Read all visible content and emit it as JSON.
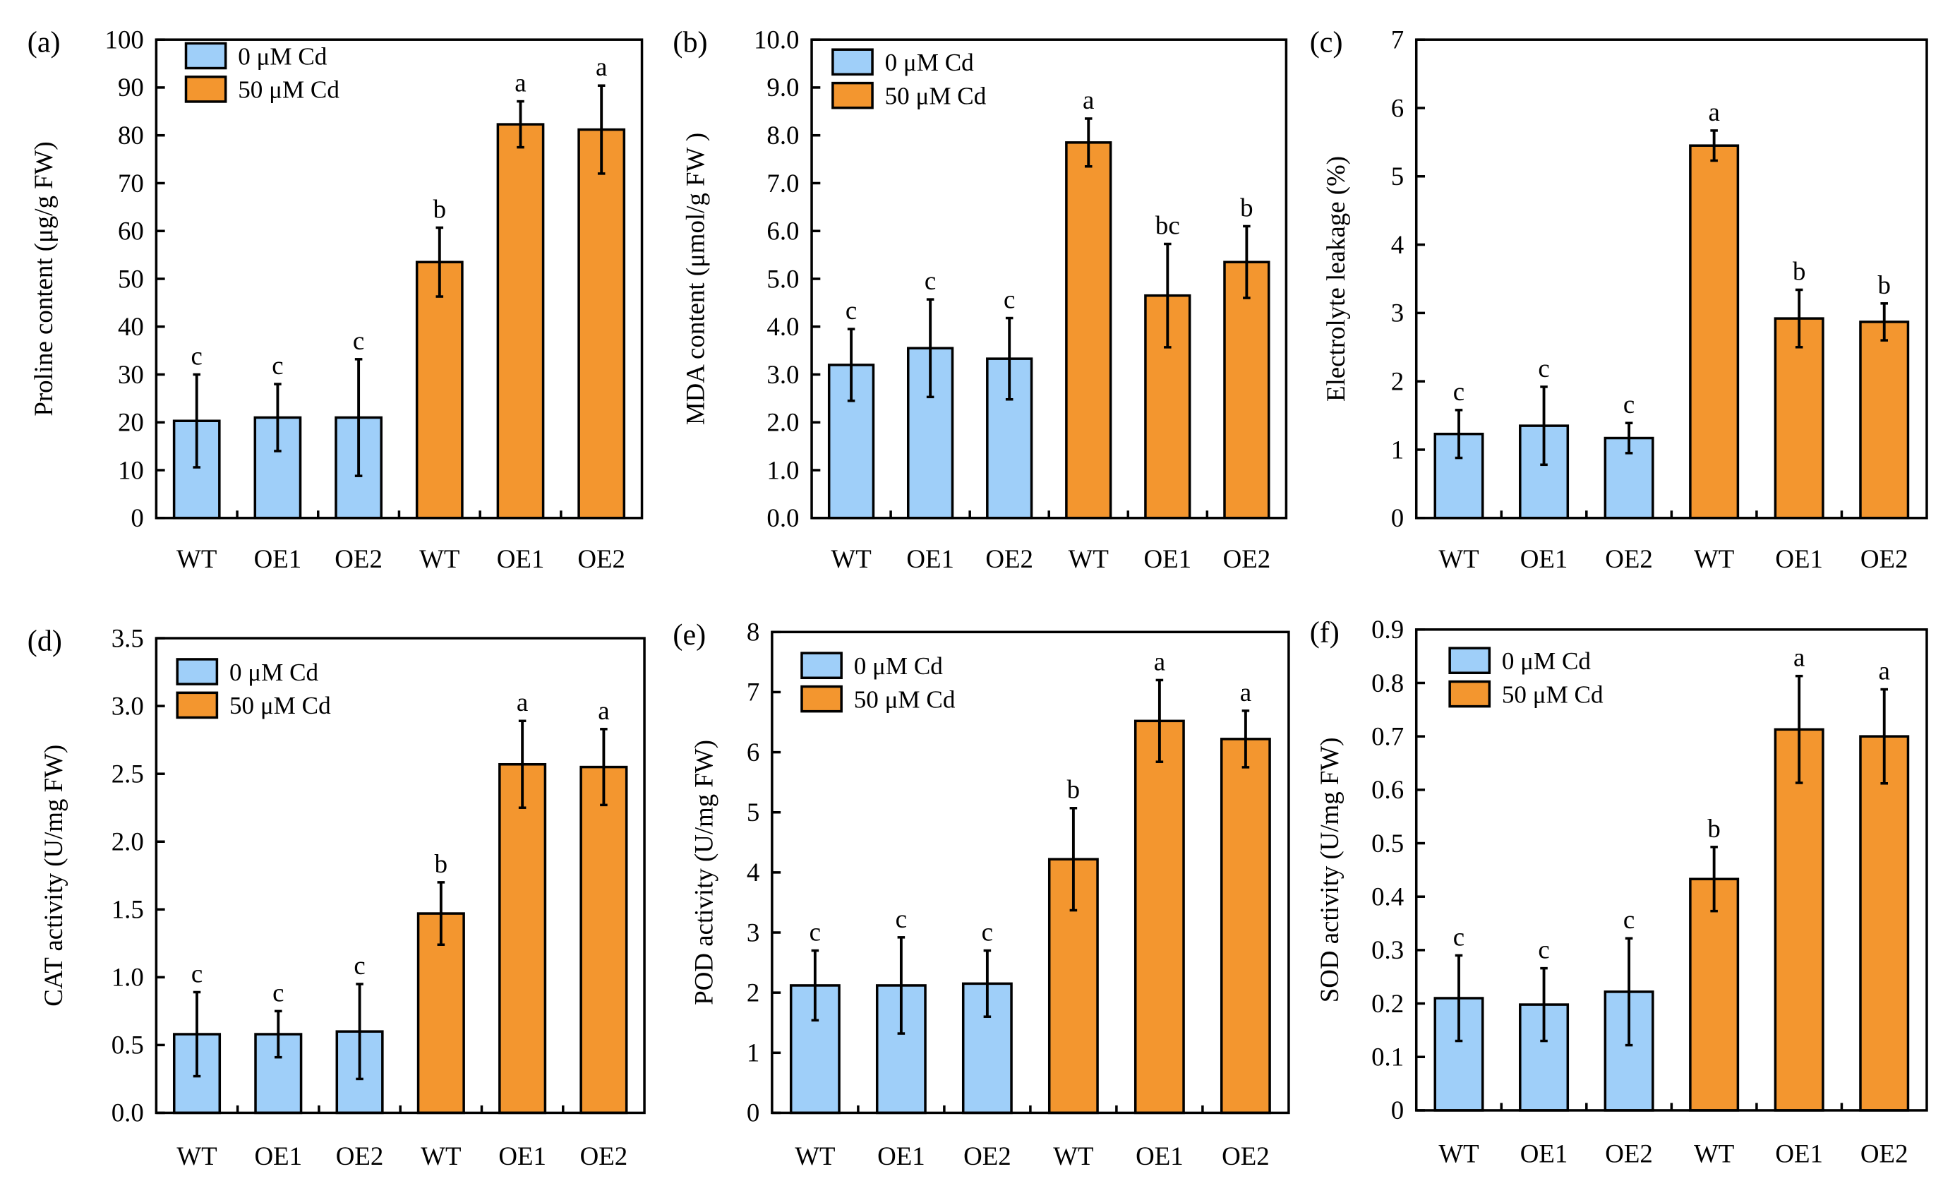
{
  "colors": {
    "control": "#9fcff9",
    "treated": "#f3962f",
    "axis": "#000000"
  },
  "legend": [
    "0   μM Cd",
    "50 μM Cd"
  ],
  "chart_data": [
    {
      "panel": "(a)",
      "type": "bar",
      "ylabel": "Proline content (μg/g FW)",
      "ylim": [
        0,
        100
      ],
      "yticks": [
        "0",
        "10",
        "20",
        "30",
        "40",
        "50",
        "60",
        "70",
        "80",
        "90",
        "100"
      ],
      "categories": [
        "WT",
        "OE1",
        "OE2",
        "WT",
        "OE1",
        "OE2"
      ],
      "groups": [
        "0 μM Cd",
        "0 μM Cd",
        "0 μM Cd",
        "50 μM Cd",
        "50 μM Cd",
        "50 μM Cd"
      ],
      "values": [
        20.3,
        21.0,
        21.0,
        53.5,
        82.3,
        81.2
      ],
      "errors": [
        9.7,
        7.0,
        12.2,
        7.2,
        4.8,
        9.2
      ],
      "letters": [
        "c",
        "c",
        "c",
        "b",
        "a",
        "a"
      ],
      "legend": true
    },
    {
      "panel": "(b)",
      "type": "bar",
      "ylabel": "MDA content (μmol/g FW )",
      "ylim": [
        0,
        10
      ],
      "yticks": [
        "0.0",
        "1.0",
        "2.0",
        "3.0",
        "4.0",
        "5.0",
        "6.0",
        "7.0",
        "8.0",
        "9.0",
        "10.0"
      ],
      "categories": [
        "WT",
        "OE1",
        "OE2",
        "WT",
        "OE1",
        "OE2"
      ],
      "groups": [
        "0 μM Cd",
        "0 μM Cd",
        "0 μM Cd",
        "50 μM Cd",
        "50 μM Cd",
        "50 μM Cd"
      ],
      "values": [
        3.2,
        3.55,
        3.33,
        7.85,
        4.65,
        5.35
      ],
      "errors": [
        0.75,
        1.02,
        0.85,
        0.5,
        1.08,
        0.75
      ],
      "letters": [
        "c",
        "c",
        "c",
        "a",
        "bc",
        "b"
      ],
      "legend": true
    },
    {
      "panel": "(c)",
      "type": "bar",
      "ylabel": "Electrolyte leakage (%)",
      "ylim": [
        0,
        7
      ],
      "yticks": [
        "0",
        "1",
        "2",
        "3",
        "4",
        "5",
        "6",
        "7"
      ],
      "categories": [
        "WT",
        "OE1",
        "OE2",
        "WT",
        "OE1",
        "OE2"
      ],
      "groups": [
        "0 μM Cd",
        "0 μM Cd",
        "0 μM Cd",
        "50 μM Cd",
        "50 μM Cd",
        "50 μM Cd"
      ],
      "values": [
        1.23,
        1.35,
        1.17,
        5.45,
        2.92,
        2.87
      ],
      "errors": [
        0.35,
        0.57,
        0.22,
        0.22,
        0.42,
        0.27
      ],
      "letters": [
        "c",
        "c",
        "c",
        "a",
        "b",
        "b"
      ],
      "legend": false
    },
    {
      "panel": "(d)",
      "type": "bar",
      "ylabel": "CAT activity (U/mg FW)",
      "ylim": [
        0,
        3.5
      ],
      "yticks": [
        "0.0",
        "0.5",
        "1.0",
        "1.5",
        "2.0",
        "2.5",
        "3.0",
        "3.5"
      ],
      "categories": [
        "WT",
        "OE1",
        "OE2",
        "WT",
        "OE1",
        "OE2"
      ],
      "groups": [
        "0 μM Cd",
        "0 μM Cd",
        "0 μM Cd",
        "50 μM Cd",
        "50 μM Cd",
        "50 μM Cd"
      ],
      "values": [
        0.58,
        0.58,
        0.6,
        1.47,
        2.57,
        2.55
      ],
      "errors": [
        0.31,
        0.17,
        0.35,
        0.23,
        0.32,
        0.28
      ],
      "letters": [
        "c",
        "c",
        "c",
        "b",
        "a",
        "a"
      ],
      "legend": true
    },
    {
      "panel": "(e)",
      "type": "bar",
      "ylabel": "POD activity (U/mg FW)",
      "ylim": [
        0,
        8
      ],
      "yticks": [
        "0",
        "1",
        "2",
        "3",
        "4",
        "5",
        "6",
        "7",
        "8"
      ],
      "categories": [
        "WT",
        "OE1",
        "OE2",
        "WT",
        "OE1",
        "OE2"
      ],
      "groups": [
        "0 μM Cd",
        "0 μM Cd",
        "0 μM Cd",
        "50 μM Cd",
        "50 μM Cd",
        "50 μM Cd"
      ],
      "values": [
        2.12,
        2.12,
        2.15,
        4.22,
        6.52,
        6.22
      ],
      "errors": [
        0.58,
        0.8,
        0.55,
        0.85,
        0.68,
        0.47
      ],
      "letters": [
        "c",
        "c",
        "c",
        "b",
        "a",
        "a"
      ],
      "legend": true
    },
    {
      "panel": "(f)",
      "type": "bar",
      "ylabel": "SOD activity (U/mg FW)",
      "ylim": [
        0,
        0.9
      ],
      "yticks": [
        "0",
        "0.1",
        "0.2",
        "0.3",
        "0.4",
        "0.5",
        "0.6",
        "0.7",
        "0.8",
        "0.9"
      ],
      "categories": [
        "WT",
        "OE1",
        "OE2",
        "WT",
        "OE1",
        "OE2"
      ],
      "groups": [
        "0 μM Cd",
        "0 μM Cd",
        "0 μM Cd",
        "50 μM Cd",
        "50 μM Cd",
        "50 μM Cd"
      ],
      "values": [
        0.21,
        0.198,
        0.222,
        0.433,
        0.713,
        0.7
      ],
      "errors": [
        0.08,
        0.068,
        0.1,
        0.06,
        0.1,
        0.088
      ],
      "letters": [
        "c",
        "c",
        "c",
        "b",
        "a",
        "a"
      ],
      "legend": true
    }
  ]
}
